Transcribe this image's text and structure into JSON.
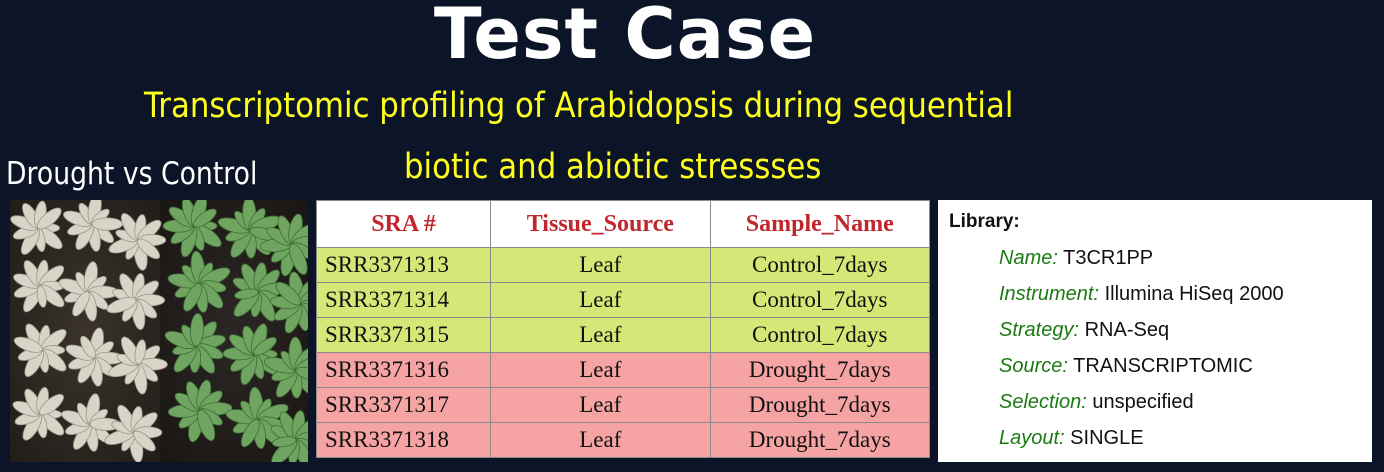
{
  "title": "Test Case",
  "subtitle": {
    "line1": "Transcriptomic profiling of Arabidopsis during sequential",
    "line2": "biotic and abiotic stressses"
  },
  "photo_caption": "Drought vs Control",
  "table": {
    "headers": [
      "SRA #",
      "Tissue_Source",
      "Sample_Name"
    ],
    "rows": [
      {
        "sra": "SRR3371313",
        "tissue": "Leaf",
        "sample": "Control_7days",
        "group": "control"
      },
      {
        "sra": "SRR3371314",
        "tissue": "Leaf",
        "sample": "Control_7days",
        "group": "control"
      },
      {
        "sra": "SRR3371315",
        "tissue": "Leaf",
        "sample": "Control_7days",
        "group": "control"
      },
      {
        "sra": "SRR3371316",
        "tissue": "Leaf",
        "sample": "Drought_7days",
        "group": "drought"
      },
      {
        "sra": "SRR3371317",
        "tissue": "Leaf",
        "sample": "Drought_7days",
        "group": "drought"
      },
      {
        "sra": "SRR3371318",
        "tissue": "Leaf",
        "sample": "Drought_7days",
        "group": "drought"
      }
    ]
  },
  "library": {
    "heading": "Library:",
    "fields": [
      {
        "key": "Name:",
        "value": "T3CR1PP"
      },
      {
        "key": "Instrument:",
        "value": "Illumina HiSeq 2000"
      },
      {
        "key": "Strategy:",
        "value": "RNA-Seq"
      },
      {
        "key": "Source:",
        "value": "TRANSCRIPTOMIC"
      },
      {
        "key": "Selection:",
        "value": "unspecified"
      },
      {
        "key": "Layout:",
        "value": "SINGLE"
      }
    ]
  },
  "colors": {
    "background": "#0c1427",
    "subtitle": "#ffff1f",
    "header_text": "#c0262b",
    "control_row": "#d4e777",
    "drought_row": "#f5a3a3",
    "field_label": "#1b7a12"
  }
}
